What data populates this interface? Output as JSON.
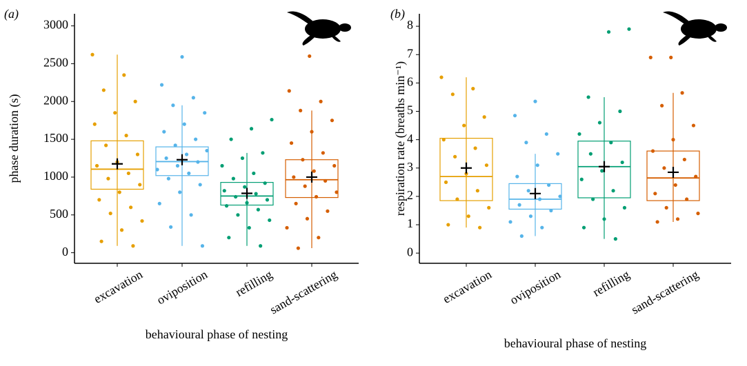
{
  "chart_data": [
    {
      "type": "box",
      "panel_label": "(a)",
      "y_label": "phase duration (s)",
      "x_label": "behavioural phase of nesting",
      "ylim": [
        -140,
        3160
      ],
      "yticks": [
        0,
        500,
        1000,
        1500,
        2000,
        2500,
        3000
      ],
      "categories": [
        "excavation",
        "oviposition",
        "refilling",
        "sand-scattering"
      ],
      "boxes": [
        {
          "color": "#E69F00",
          "whisker_low": 90,
          "q1": 840,
          "median": 1105,
          "q3": 1480,
          "whisker_high": 2620,
          "mean": 1175,
          "points": [
            2620,
            2350,
            2150,
            2000,
            1850,
            1700,
            1550,
            1420,
            1300,
            1200,
            1150,
            1050,
            980,
            900,
            800,
            700,
            600,
            520,
            420,
            300,
            150,
            90
          ]
        },
        {
          "color": "#56B4E9",
          "whisker_low": 90,
          "q1": 1020,
          "median": 1205,
          "q3": 1400,
          "whisker_high": 1950,
          "mean": 1230,
          "points": [
            2590,
            2220,
            2050,
            1950,
            1850,
            1700,
            1600,
            1500,
            1420,
            1350,
            1300,
            1250,
            1200,
            1150,
            1100,
            1050,
            980,
            900,
            800,
            650,
            500,
            340,
            90
          ]
        },
        {
          "color": "#009E73",
          "whisker_low": 90,
          "q1": 630,
          "median": 750,
          "q3": 930,
          "whisker_high": 1320,
          "mean": 785,
          "points": [
            1760,
            1640,
            1500,
            1320,
            1250,
            1150,
            1050,
            980,
            920,
            870,
            820,
            780,
            740,
            700,
            660,
            620,
            570,
            500,
            430,
            330,
            200,
            90
          ]
        },
        {
          "color": "#D55E00",
          "whisker_low": 60,
          "q1": 730,
          "median": 965,
          "q3": 1230,
          "whisker_high": 1880,
          "mean": 1000,
          "points": [
            2600,
            2140,
            2000,
            1880,
            1750,
            1600,
            1450,
            1320,
            1230,
            1150,
            1080,
            1000,
            950,
            880,
            800,
            740,
            650,
            550,
            450,
            330,
            200,
            60
          ]
        }
      ]
    },
    {
      "type": "box",
      "panel_label": "(b)",
      "y_label": "respiration rate (breaths  min⁻¹)",
      "x_label": "behavioural phase of nesting",
      "ylim": [
        -0.36,
        8.44
      ],
      "yticks": [
        0,
        1,
        2,
        3,
        4,
        5,
        6,
        7,
        8
      ],
      "categories": [
        "excavation",
        "oviposition",
        "refilling",
        "sand-scattering"
      ],
      "boxes": [
        {
          "color": "#E69F00",
          "whisker_low": 0.9,
          "q1": 1.85,
          "median": 2.7,
          "q3": 4.05,
          "whisker_high": 6.2,
          "mean": 3.0,
          "points": [
            6.2,
            5.8,
            5.6,
            4.8,
            4.5,
            4.0,
            3.7,
            3.4,
            3.1,
            2.8,
            2.5,
            2.2,
            1.9,
            1.6,
            1.3,
            1.0,
            0.9
          ]
        },
        {
          "color": "#56B4E9",
          "whisker_low": 0.6,
          "q1": 1.55,
          "median": 1.9,
          "q3": 2.45,
          "whisker_high": 3.5,
          "mean": 2.1,
          "points": [
            5.35,
            4.85,
            4.2,
            3.9,
            3.5,
            3.1,
            2.7,
            2.4,
            2.2,
            2.0,
            1.9,
            1.7,
            1.5,
            1.3,
            1.1,
            0.9,
            0.6
          ]
        },
        {
          "color": "#009E73",
          "whisker_low": 0.5,
          "q1": 1.95,
          "median": 3.05,
          "q3": 3.95,
          "whisker_high": 5.5,
          "mean": 3.05,
          "points": [
            7.9,
            7.8,
            5.5,
            5.0,
            4.6,
            4.2,
            3.9,
            3.5,
            3.2,
            2.9,
            2.6,
            2.2,
            1.9,
            1.6,
            1.2,
            0.9,
            0.5
          ]
        },
        {
          "color": "#D55E00",
          "whisker_low": 1.1,
          "q1": 1.85,
          "median": 2.65,
          "q3": 3.6,
          "whisker_high": 5.65,
          "mean": 2.85,
          "points": [
            6.9,
            6.9,
            5.65,
            5.2,
            4.5,
            4.0,
            3.6,
            3.3,
            3.0,
            2.7,
            2.4,
            2.1,
            1.9,
            1.6,
            1.4,
            1.2,
            1.1
          ]
        }
      ]
    }
  ]
}
